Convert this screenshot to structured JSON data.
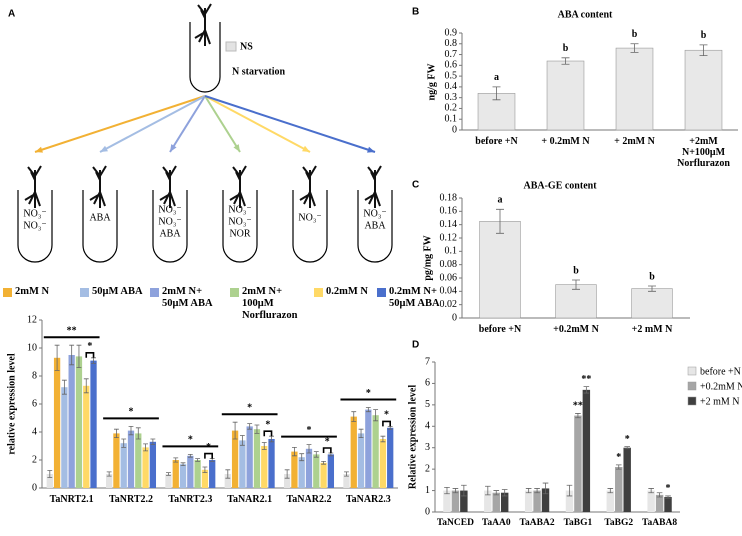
{
  "diagram": {
    "condition": "N starvation",
    "tubes": [
      [
        "NO₃⁻",
        "NO₃⁻"
      ],
      [
        "ABA"
      ],
      [
        "NO₃⁻",
        "NO₃⁻",
        "ABA"
      ],
      [
        "NO₃⁻",
        "NO₃⁻",
        "NOR"
      ],
      [
        "NO₃⁻"
      ],
      [
        "NO₃⁻",
        "ABA"
      ]
    ]
  },
  "chart_data": [
    {
      "panel": "A",
      "type": "bar",
      "ylabel": "relative expression level",
      "categories": [
        "TaNRT2.1",
        "TaNRT2.2",
        "TaNRT2.3",
        "TaNAR2.1",
        "TaNAR2.2",
        "TaNAR2.3"
      ],
      "ylim": [
        0,
        12
      ],
      "yticks": [
        0,
        2,
        4,
        6,
        8,
        10,
        12
      ],
      "series": [
        {
          "name": "NS",
          "color": "#e3e3e3",
          "values": [
            1,
            1,
            1,
            1,
            1,
            1
          ],
          "errors": [
            0.25,
            0.15,
            0.1,
            0.3,
            0.3,
            0.15
          ]
        },
        {
          "name": "2mM N",
          "color": "#f2b134",
          "values": [
            9.3,
            3.9,
            2.0,
            4.1,
            2.6,
            5.1
          ],
          "errors": [
            0.9,
            0.3,
            0.15,
            0.6,
            0.3,
            0.35
          ]
        },
        {
          "name": "50μM ABA",
          "color": "#a4bde3",
          "values": [
            7.2,
            3.2,
            1.7,
            3.4,
            2.2,
            3.9
          ],
          "errors": [
            0.5,
            0.3,
            0.1,
            0.35,
            0.25,
            0.3
          ]
        },
        {
          "name": "2mM N+ 50μM ABA",
          "color": "#8ea2dc",
          "values": [
            9.5,
            4.1,
            2.3,
            4.4,
            2.8,
            5.6
          ],
          "errors": [
            0.7,
            0.3,
            0.1,
            0.2,
            0.3,
            0.15
          ]
        },
        {
          "name": "2mM N+ 100μM Norflurazon",
          "color": "#add18f",
          "values": [
            9.4,
            3.9,
            2.0,
            4.2,
            2.4,
            5.2
          ],
          "errors": [
            0.8,
            0.4,
            0.1,
            0.3,
            0.2,
            0.4
          ]
        },
        {
          "name": "0.2mM N",
          "color": "#ffd966",
          "values": [
            7.3,
            2.9,
            1.3,
            3.0,
            1.8,
            3.5
          ],
          "errors": [
            0.5,
            0.25,
            0.2,
            0.25,
            0.1,
            0.2
          ]
        },
        {
          "name": "0.2mM N+ 50μM ABA",
          "color": "#4a6fcc",
          "values": [
            9.1,
            3.3,
            2.0,
            3.5,
            2.4,
            4.3
          ],
          "errors": [
            0.2,
            0.2,
            0.1,
            0.2,
            0.1,
            0.1
          ]
        }
      ],
      "annotations": [
        "**",
        "*",
        "*",
        "*",
        "*",
        "*",
        "*",
        "*",
        "*",
        "*",
        "*"
      ]
    },
    {
      "panel": "B",
      "type": "bar",
      "title": "ABA content",
      "ylabel": "ng/g FW",
      "categories": [
        "before +N",
        "+ 0.2mM N",
        "+ 2mM N",
        "+2mM N+100μM Norflurazon"
      ],
      "values": [
        0.34,
        0.64,
        0.76,
        0.74
      ],
      "errors": [
        0.06,
        0.03,
        0.04,
        0.05
      ],
      "color": "#e8e8e8",
      "ylim": [
        0,
        0.9
      ],
      "yticks": [
        0,
        0.1,
        0.2,
        0.3,
        0.4,
        0.5,
        0.6,
        0.7,
        0.8,
        0.9
      ],
      "annotations": [
        "a",
        "b",
        "b",
        "b"
      ]
    },
    {
      "panel": "C",
      "type": "bar",
      "title": "ABA-GE content",
      "ylabel": "pg/mg FW",
      "categories": [
        "before +N",
        "+0.2mM N",
        "+2 mM N"
      ],
      "values": [
        0.145,
        0.05,
        0.044
      ],
      "errors": [
        0.018,
        0.007,
        0.004
      ],
      "color": "#e8e8e8",
      "ylim": [
        0,
        0.18
      ],
      "yticks": [
        0,
        0.02,
        0.04,
        0.06,
        0.08,
        0.1,
        0.12,
        0.14,
        0.16,
        0.18
      ],
      "annotations": [
        "a",
        "b",
        "b"
      ]
    },
    {
      "panel": "D",
      "type": "bar",
      "ylabel": "Relative expression level",
      "categories": [
        "TaNCED",
        "TaAA0",
        "TaABA2",
        "TaBG1",
        "TaBG2",
        "TaABA8"
      ],
      "ylim": [
        0,
        7
      ],
      "yticks": [
        0,
        1,
        2,
        3,
        4,
        5,
        6,
        7
      ],
      "series": [
        {
          "name": "before +N",
          "color": "#e6e6e6",
          "values": [
            1,
            1,
            1,
            1,
            1,
            1
          ],
          "errors": [
            0.15,
            0.2,
            0.1,
            0.25,
            0.1,
            0.1
          ]
        },
        {
          "name": "+0.2mM N",
          "color": "#a6a6a6",
          "values": [
            1.0,
            0.9,
            1.0,
            4.5,
            2.1,
            0.8
          ],
          "errors": [
            0.1,
            0.1,
            0.1,
            0.1,
            0.1,
            0.1
          ]
        },
        {
          "name": "+2 mM N",
          "color": "#3f3f3f",
          "values": [
            1.0,
            0.9,
            1.1,
            5.7,
            3.0,
            0.7
          ],
          "errors": [
            0.25,
            0.15,
            0.25,
            0.15,
            0.05,
            0.05
          ]
        }
      ],
      "annotations": [
        "**",
        "**",
        "*",
        "*",
        "*"
      ]
    }
  ]
}
